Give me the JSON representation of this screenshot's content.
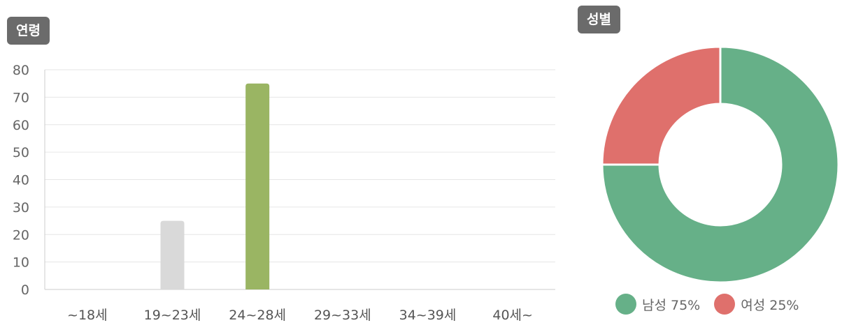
{
  "age_section": {
    "title": "연령"
  },
  "gender_section": {
    "title": "성별"
  },
  "colors": {
    "bar_highlight": "#9ab563",
    "bar_other": "#d9d9d9",
    "male": "#66b088",
    "female": "#df706c",
    "grid": "#e6e6e6",
    "badge": "#6b6b6b"
  },
  "legend": {
    "male_label": "남성 75%",
    "female_label": "여성 25%"
  },
  "chart_data": [
    {
      "type": "bar",
      "title": "연령",
      "categories": [
        "~18세",
        "19~23세",
        "24~28세",
        "29~33세",
        "34~39세",
        "40세~"
      ],
      "values": [
        0,
        25,
        75,
        0,
        0,
        0
      ],
      "highlight_index": 2,
      "ylim": [
        0,
        80
      ],
      "yticks": [
        0,
        10,
        20,
        30,
        40,
        50,
        60,
        70,
        80
      ],
      "grid": true
    },
    {
      "type": "pie",
      "style": "donut",
      "title": "성별",
      "labels": [
        "남성",
        "여성"
      ],
      "values": [
        75,
        25
      ],
      "legend": "bottom"
    }
  ]
}
